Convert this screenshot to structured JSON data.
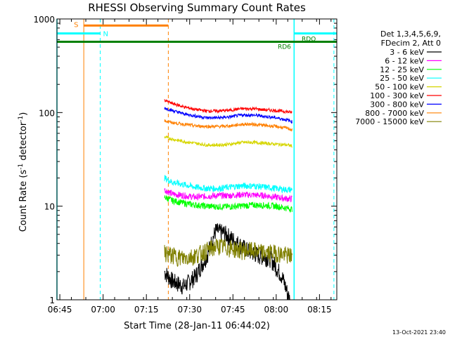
{
  "chart_data": {
    "type": "line",
    "title": "RHESSI Observing Summary Count Rates",
    "xlabel": "Start Time (28-Jan-11 06:44:02)",
    "ylabel_main": "Count Rate (s",
    "ylabel_sup1": "-1",
    "ylabel_mid": " detector",
    "ylabel_sup2": "-1",
    "ylabel_end": ")",
    "yscale": "log",
    "ylim": [
      1,
      1000
    ],
    "xlim_minutes": [
      0,
      97
    ],
    "x_ticks": [
      {
        "label": "06:45",
        "minutes": 1
      },
      {
        "label": "07:00",
        "minutes": 16
      },
      {
        "label": "07:15",
        "minutes": 31
      },
      {
        "label": "07:30",
        "minutes": 46
      },
      {
        "label": "07:45",
        "minutes": 61
      },
      {
        "label": "08:00",
        "minutes": 76
      },
      {
        "label": "08:15",
        "minutes": 91
      }
    ],
    "y_ticks": [
      {
        "label": "1",
        "value": 1
      },
      {
        "label": "10",
        "value": 10
      },
      {
        "label": "100",
        "value": 100
      },
      {
        "label": "1000",
        "value": 1000
      }
    ],
    "legend_header": [
      "Det 1,3,4,5,6,9,",
      "FDecim 2, Att 0"
    ],
    "series": [
      {
        "name": "3 - 6 keV",
        "color": "#000000",
        "points": [
          [
            37.3,
            2.0
          ],
          [
            40,
            1.6
          ],
          [
            44,
            1.4
          ],
          [
            48,
            1.8
          ],
          [
            52,
            3.0
          ],
          [
            55,
            5.5
          ],
          [
            58,
            5.2
          ],
          [
            62,
            4.2
          ],
          [
            66,
            3.4
          ],
          [
            70,
            3.0
          ],
          [
            74,
            2.8
          ],
          [
            78,
            1.8
          ],
          [
            80.7,
            1.0
          ]
        ]
      },
      {
        "name": "6 - 12 keV",
        "color": "#ff00ff",
        "points": [
          [
            37.3,
            15
          ],
          [
            40,
            13.5
          ],
          [
            44,
            13
          ],
          [
            48,
            12.5
          ],
          [
            52,
            12.8
          ],
          [
            56,
            13
          ],
          [
            60,
            13
          ],
          [
            64,
            13.3
          ],
          [
            68,
            13.2
          ],
          [
            72,
            13
          ],
          [
            76,
            12.5
          ],
          [
            80,
            12
          ],
          [
            81.5,
            12
          ]
        ]
      },
      {
        "name": "12 - 25 keV",
        "color": "#00ff00",
        "points": [
          [
            37.3,
            12.5
          ],
          [
            40,
            11.5
          ],
          [
            44,
            10.8
          ],
          [
            48,
            10.3
          ],
          [
            52,
            10.0
          ],
          [
            56,
            9.9
          ],
          [
            60,
            9.9
          ],
          [
            64,
            10.1
          ],
          [
            68,
            10.3
          ],
          [
            72,
            10.2
          ],
          [
            76,
            10.0
          ],
          [
            80,
            9.5
          ],
          [
            81.5,
            9.3
          ]
        ]
      },
      {
        "name": "25 - 50 keV",
        "color": "#00ffff",
        "points": [
          [
            37.3,
            20
          ],
          [
            40,
            18
          ],
          [
            44,
            17
          ],
          [
            48,
            16
          ],
          [
            52,
            15.5
          ],
          [
            56,
            15.5
          ],
          [
            60,
            16
          ],
          [
            64,
            16.5
          ],
          [
            68,
            16.5
          ],
          [
            72,
            16
          ],
          [
            76,
            15.5
          ],
          [
            80,
            15
          ],
          [
            81.5,
            15
          ]
        ]
      },
      {
        "name": "50 - 100 keV",
        "color": "#d6d600",
        "points": [
          [
            37.3,
            55
          ],
          [
            40,
            52
          ],
          [
            44,
            49
          ],
          [
            48,
            47
          ],
          [
            52,
            45
          ],
          [
            56,
            45
          ],
          [
            60,
            46
          ],
          [
            64,
            48
          ],
          [
            68,
            48
          ],
          [
            72,
            47
          ],
          [
            76,
            46
          ],
          [
            80,
            45
          ],
          [
            81.5,
            44
          ]
        ]
      },
      {
        "name": "100 - 300 keV",
        "color": "#ff0000",
        "points": [
          [
            37.3,
            135
          ],
          [
            40,
            125
          ],
          [
            44,
            115
          ],
          [
            48,
            108
          ],
          [
            52,
            104
          ],
          [
            56,
            104
          ],
          [
            60,
            106
          ],
          [
            64,
            110
          ],
          [
            68,
            110
          ],
          [
            72,
            107
          ],
          [
            76,
            105
          ],
          [
            80,
            102
          ],
          [
            81.5,
            100
          ]
        ]
      },
      {
        "name": "300 - 800 keV",
        "color": "#0000ff",
        "points": [
          [
            37.3,
            112
          ],
          [
            40,
            105
          ],
          [
            44,
            97
          ],
          [
            48,
            92
          ],
          [
            52,
            88
          ],
          [
            56,
            88
          ],
          [
            60,
            90
          ],
          [
            64,
            94
          ],
          [
            68,
            94
          ],
          [
            72,
            91
          ],
          [
            76,
            88
          ],
          [
            80,
            83
          ],
          [
            81.5,
            80
          ]
        ]
      },
      {
        "name": "800 - 7000 keV",
        "color": "#ff8000",
        "points": [
          [
            37.3,
            82
          ],
          [
            40,
            78
          ],
          [
            44,
            75
          ],
          [
            48,
            72
          ],
          [
            52,
            71
          ],
          [
            56,
            71
          ],
          [
            60,
            72
          ],
          [
            64,
            75
          ],
          [
            68,
            75
          ],
          [
            72,
            73
          ],
          [
            76,
            71
          ],
          [
            80,
            68
          ],
          [
            81.5,
            65
          ]
        ]
      },
      {
        "name": "7000 - 15000 keV",
        "color": "#808000",
        "points": [
          [
            37.3,
            3.2
          ],
          [
            40,
            3.0
          ],
          [
            44,
            2.8
          ],
          [
            48,
            3.0
          ],
          [
            52,
            3.4
          ],
          [
            56,
            3.8
          ],
          [
            60,
            3.6
          ],
          [
            64,
            3.4
          ],
          [
            68,
            3.4
          ],
          [
            72,
            3.2
          ],
          [
            76,
            3.2
          ],
          [
            80,
            3.0
          ],
          [
            81.5,
            3.0
          ]
        ]
      }
    ],
    "annotations": {
      "saa": {
        "label": "S",
        "color": "#ff8000",
        "start_minutes": 9.3,
        "end_minutes": 38.6,
        "value": 850
      },
      "night": {
        "label": "N",
        "color": "#00ffff",
        "segments": [
          [
            0,
            15
          ],
          [
            82.2,
            97
          ]
        ],
        "value": 700
      },
      "rdo": {
        "label": "RDO",
        "color": "#008000",
        "value": 570
      },
      "rd6": {
        "label": "RD6",
        "color": "#008000"
      },
      "orange_solid_line_minutes": 9.3,
      "orange_dashed_line_minutes": 38.6,
      "cyan_solid_lines_minutes": [
        0,
        82.2
      ],
      "cyan_dashed_lines_minutes": [
        15,
        96
      ]
    },
    "timestamp": "13-Oct-2021 23:40"
  }
}
